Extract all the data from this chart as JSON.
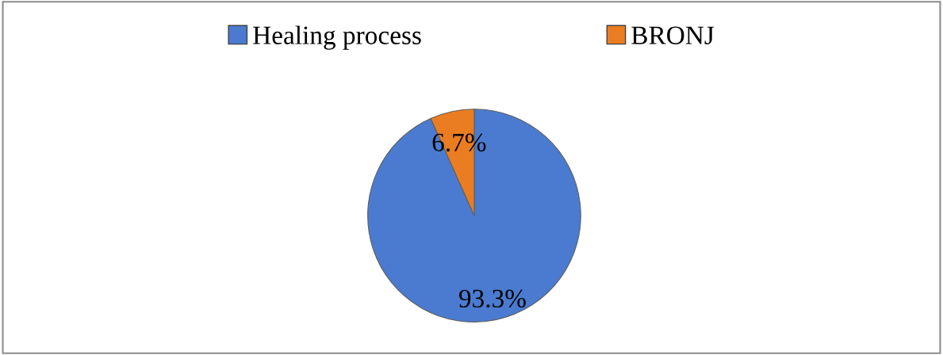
{
  "chart_data": {
    "type": "pie",
    "categories": [
      "Healing process",
      "BRONJ"
    ],
    "values": [
      93.3,
      6.7
    ],
    "colors": [
      "#4a7bd0",
      "#ea7d22"
    ],
    "value_labels": [
      "93.3%",
      "6.7%"
    ],
    "legend": "top"
  }
}
